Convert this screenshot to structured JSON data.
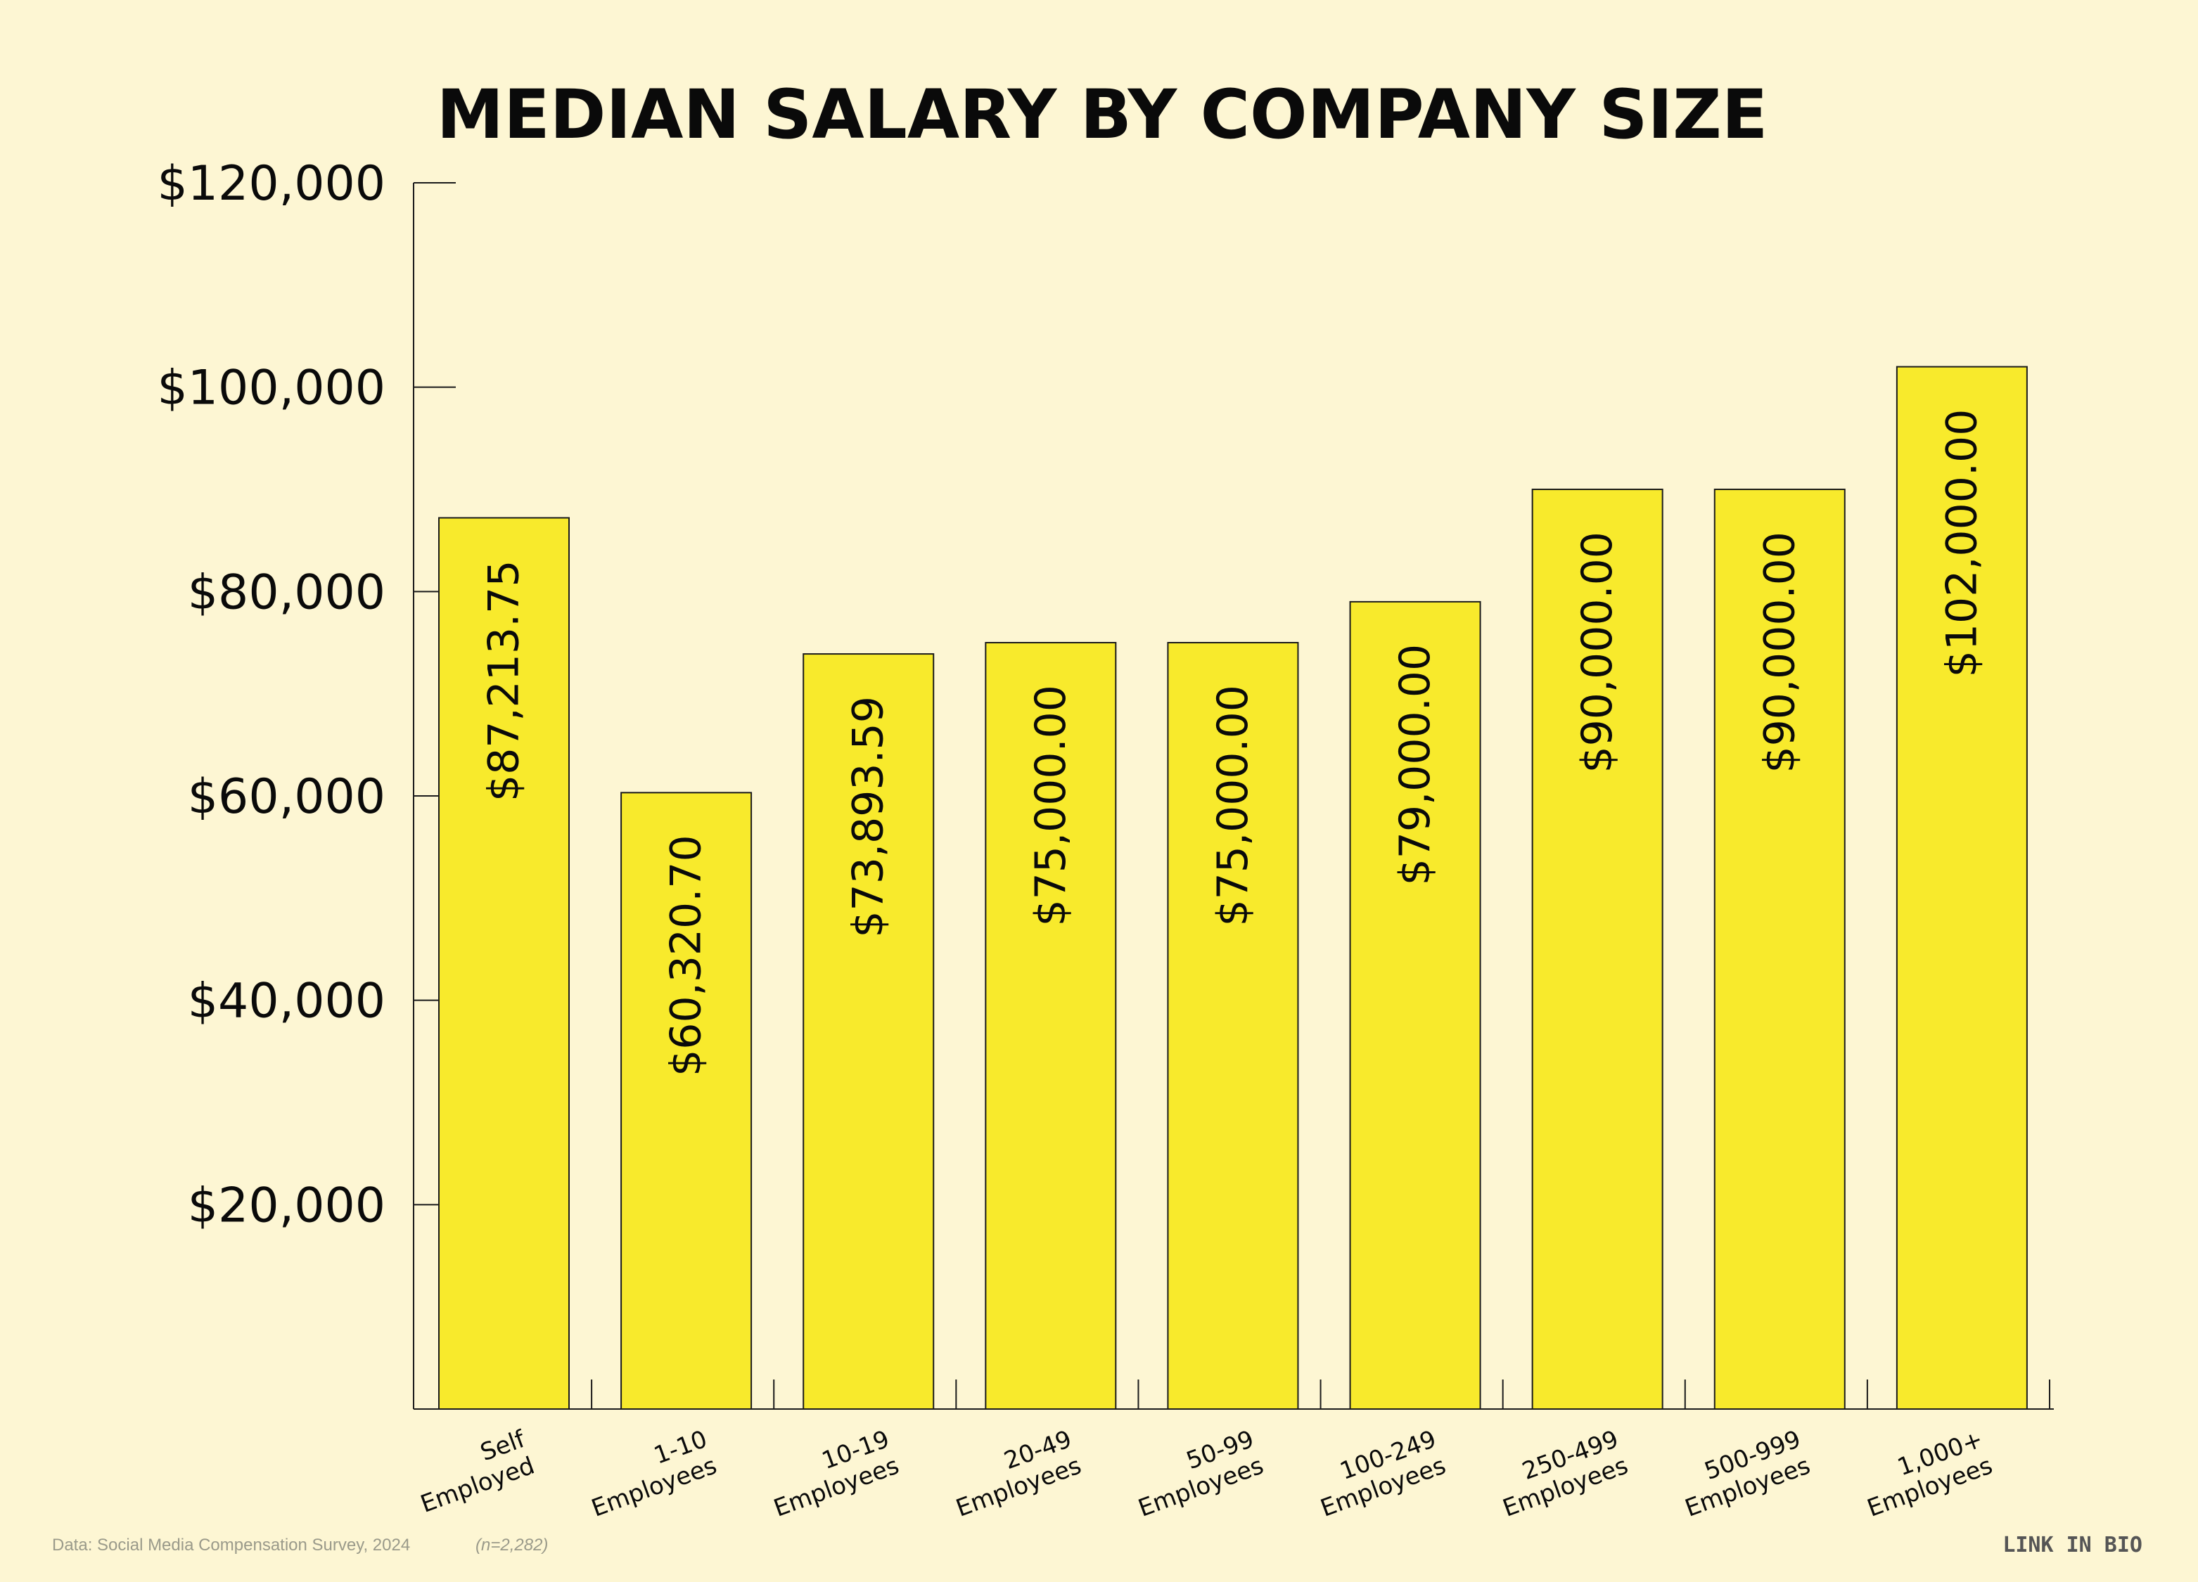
{
  "colors": {
    "background": "#fdf6d3",
    "bar_fill": "#f8ea2c",
    "bar_stroke": "#1a1a1a",
    "axis": "#1a1a1a",
    "text": "#0a0a0a",
    "footnote": "#9a9a8a"
  },
  "chart_data": {
    "type": "bar",
    "title": "MEDIAN SALARY BY COMPANY SIZE",
    "xlabel": "",
    "ylabel": "",
    "ylim": [
      0,
      120000
    ],
    "yticks": [
      20000,
      40000,
      60000,
      80000,
      100000,
      120000
    ],
    "ytick_labels": [
      "$20,000",
      "$40,000",
      "$60,000",
      "$80,000",
      "$100,000",
      "$120,000"
    ],
    "categories": [
      [
        "Self",
        "Employed"
      ],
      [
        "1-10",
        "Employees"
      ],
      [
        "10-19",
        "Employees"
      ],
      [
        "20-49",
        "Employees"
      ],
      [
        "50-99",
        "Employees"
      ],
      [
        "100-249",
        "Employees"
      ],
      [
        "250-499",
        "Employees"
      ],
      [
        "500-999",
        "Employees"
      ],
      [
        "1,000+",
        "Employees"
      ]
    ],
    "values": [
      87213.75,
      60320.7,
      73893.59,
      75000.0,
      75000.0,
      79000.0,
      90000.0,
      90000.0,
      102000.0
    ],
    "data_labels": [
      "$87,213.75",
      "$60,320.70",
      "$73,893.59",
      "$75,000.00",
      "$75,000.00",
      "$79,000.00",
      "$90,000.00",
      "$90,000.00",
      "$102,000.00"
    ],
    "grid": false,
    "legend": "none"
  },
  "footer": {
    "source": "Data: Social Media Compensation Survey, 2024",
    "sample": "(n=2,282)",
    "logo": "LINK IN BIO"
  }
}
